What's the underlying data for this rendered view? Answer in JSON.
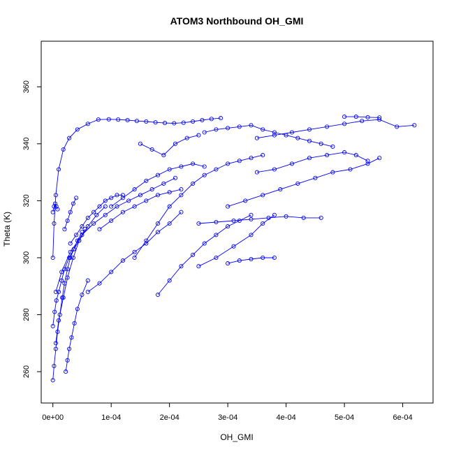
{
  "chart_data": {
    "type": "line",
    "title": "ATOM3 Northbound OH_GMI",
    "xlabel": "OH_GMI",
    "ylabel": "Theta (K)",
    "xlim": [
      -2e-05,
      0.000652
    ],
    "ylim": [
      249,
      376
    ],
    "x_ticks": [
      0,
      0.0001,
      0.0002,
      0.0003,
      0.0004,
      0.0005,
      0.0006
    ],
    "x_tick_labels": [
      "0e+00",
      "1e-04",
      "2e-04",
      "3e-04",
      "4e-04",
      "5e-04",
      "6e-04"
    ],
    "y_ticks": [
      260,
      280,
      300,
      320,
      340,
      360
    ],
    "y_tick_labels": [
      "260",
      "280",
      "300",
      "320",
      "340",
      "360"
    ],
    "marker": "open-circle",
    "line": "connected",
    "grid": false,
    "colors": {
      "series": "#0000ff",
      "axis": "#000000"
    },
    "series": [
      {
        "x": [
          0.0,
          2e-06,
          5e-06,
          8e-06,
          1.2e-05,
          1.6e-05,
          2e-05,
          2.5e-05,
          3e-05,
          3.6e-05,
          4.2e-05,
          5e-05
        ],
        "y": [
          257,
          262,
          268,
          274,
          280,
          286,
          291,
          296,
          300,
          303,
          306,
          309
        ]
      },
      {
        "x": [
          0.0,
          3e-06,
          6e-06,
          1e-05,
          1.5e-05,
          2e-05,
          2.8e-05,
          3.6e-05,
          4.5e-05,
          5.5e-05
        ],
        "y": [
          276,
          281,
          285,
          288,
          292,
          296,
          300,
          303,
          306,
          310
        ]
      },
      {
        "x": [
          5e-06,
          1e-05,
          1.8e-05,
          2.5e-05,
          3.5e-05,
          4.5e-05,
          6e-05,
          7.5e-05,
          9e-05
        ],
        "y": [
          270,
          278,
          286,
          293,
          300,
          306,
          311,
          315,
          318
        ]
      },
      {
        "x": [
          2.2e-05,
          2.5e-05,
          2.8e-05,
          3.2e-05,
          3.7e-05,
          4.2e-05,
          5e-05,
          6e-05
        ],
        "y": [
          260,
          264,
          268,
          272,
          277,
          282,
          287,
          292
        ]
      },
      {
        "x": [
          0.0,
          2e-06,
          5e-06,
          1e-05,
          1.8e-05,
          2.8e-05,
          4.2e-05,
          6e-05,
          7.8e-05,
          9.6e-05,
          0.000112,
          0.000128,
          0.000144,
          0.00016,
          0.000176,
          0.000192,
          0.000208,
          0.000224,
          0.00024,
          0.000256,
          0.000272,
          0.000288
        ],
        "y": [
          300,
          312,
          322,
          331,
          338,
          342,
          345,
          347,
          348.5,
          348.6,
          348.5,
          348.3,
          348.0,
          347.8,
          347.5,
          347.3,
          347.2,
          347.4,
          347.8,
          348.3,
          348.7,
          349.0
        ]
      },
      {
        "x": [
          5e-06,
          1.5e-05,
          3e-05,
          5e-05,
          7e-05,
          9e-05,
          0.00011,
          0.00013,
          0.00015,
          0.00017,
          0.00019,
          0.00021
        ],
        "y": [
          288,
          295,
          302,
          308,
          312,
          315,
          318,
          320,
          322,
          324,
          326,
          328
        ]
      },
      {
        "x": [
          6e-05,
          8e-05,
          0.0001,
          0.00012,
          0.00014,
          0.00016,
          0.00018,
          0.0002,
          0.00022
        ],
        "y": [
          288,
          291,
          295,
          299,
          302,
          305,
          309,
          312,
          316
        ]
      },
      {
        "x": [
          0.00014,
          0.00016,
          0.00018,
          0.0002,
          0.00022,
          0.00024,
          0.00026,
          0.00028,
          0.0003,
          0.00032,
          0.00034,
          0.00036
        ],
        "y": [
          300,
          306,
          312,
          318,
          322,
          326,
          329,
          331,
          333,
          334,
          335,
          336
        ]
      },
      {
        "x": [
          0.00015,
          0.00017,
          0.00019,
          0.00021,
          0.00023,
          0.00025
        ],
        "y": [
          340,
          338,
          336,
          340,
          342,
          343
        ]
      },
      {
        "x": [
          0.00018,
          0.0002,
          0.00022,
          0.00024,
          0.00026,
          0.00028,
          0.0003,
          0.00032,
          0.00034
        ],
        "y": [
          287,
          292,
          297,
          301,
          305,
          308,
          311,
          313,
          315
        ]
      },
      {
        "x": [
          0.00025,
          0.00028,
          0.00031,
          0.00034,
          0.00036,
          0.00038
        ],
        "y": [
          297,
          300,
          304,
          308,
          312,
          315
        ]
      },
      {
        "x": [
          0.0003,
          0.00032,
          0.00034,
          0.00036,
          0.00038
        ],
        "y": [
          298,
          299,
          299.5,
          300,
          300
        ]
      },
      {
        "x": [
          0.00026,
          0.00028,
          0.0003,
          0.00032,
          0.00034,
          0.00036,
          0.00038,
          0.0004,
          0.00042,
          0.00044,
          0.00046,
          0.00048
        ],
        "y": [
          344,
          345,
          345.5,
          346,
          346.5,
          345,
          344,
          343,
          342,
          341,
          340,
          339
        ]
      },
      {
        "x": [
          0.00035,
          0.00038,
          0.00041,
          0.00044,
          0.00047,
          0.0005,
          0.00053,
          0.00056,
          0.00059,
          0.00062
        ],
        "y": [
          342,
          343,
          344,
          345,
          346,
          347,
          348,
          348.5,
          346,
          346.5
        ]
      },
      {
        "x": [
          0.0005,
          0.00052,
          0.00054,
          0.00056
        ],
        "y": [
          349.5,
          349.5,
          349.3,
          349.2
        ]
      },
      {
        "x": [
          0.00035,
          0.00038,
          0.00041,
          0.00044,
          0.00047,
          0.0005,
          0.00052,
          0.00054
        ],
        "y": [
          330,
          331,
          333,
          335,
          336,
          337,
          336,
          334
        ]
      },
      {
        "x": [
          0.0003,
          0.00033,
          0.00036,
          0.00039,
          0.00042,
          0.00045,
          0.00048,
          0.00051,
          0.00054,
          0.00056
        ],
        "y": [
          318,
          320,
          322,
          324,
          326,
          328,
          330,
          331,
          333,
          335
        ]
      },
      {
        "x": [
          0.00025,
          0.00028,
          0.00031,
          0.00034,
          0.00037,
          0.0004,
          0.00043,
          0.00046
        ],
        "y": [
          312,
          312.5,
          313,
          313.5,
          314,
          314.5,
          314,
          314
        ]
      },
      {
        "x": [
          0.0001,
          0.00012,
          0.00014,
          0.00016,
          0.00018,
          0.0002,
          0.00022,
          0.00024,
          0.00026
        ],
        "y": [
          318,
          321,
          324,
          327,
          329,
          331,
          332,
          333,
          332
        ]
      },
      {
        "x": [
          3e-05,
          4e-05,
          5e-05,
          6e-05,
          7e-05,
          8e-05,
          9e-05,
          0.0001,
          0.00011,
          0.00012
        ],
        "y": [
          305,
          308,
          311,
          314,
          316,
          318,
          320,
          321,
          322,
          322
        ]
      },
      {
        "x": [
          8e-05,
          0.0001,
          0.00012,
          0.00014,
          0.00016,
          0.00018,
          0.0002,
          0.00022
        ],
        "y": [
          310,
          313,
          316,
          318,
          320,
          322,
          323,
          324
        ]
      },
      {
        "x": [
          0.0,
          2e-06,
          4e-06,
          6e-06,
          8e-06
        ],
        "y": [
          316,
          318,
          319,
          318,
          317
        ]
      },
      {
        "x": [
          2e-05,
          2.5e-05,
          3e-05,
          3.5e-05,
          4e-05
        ],
        "y": [
          310,
          313,
          316,
          319,
          321
        ]
      }
    ]
  }
}
